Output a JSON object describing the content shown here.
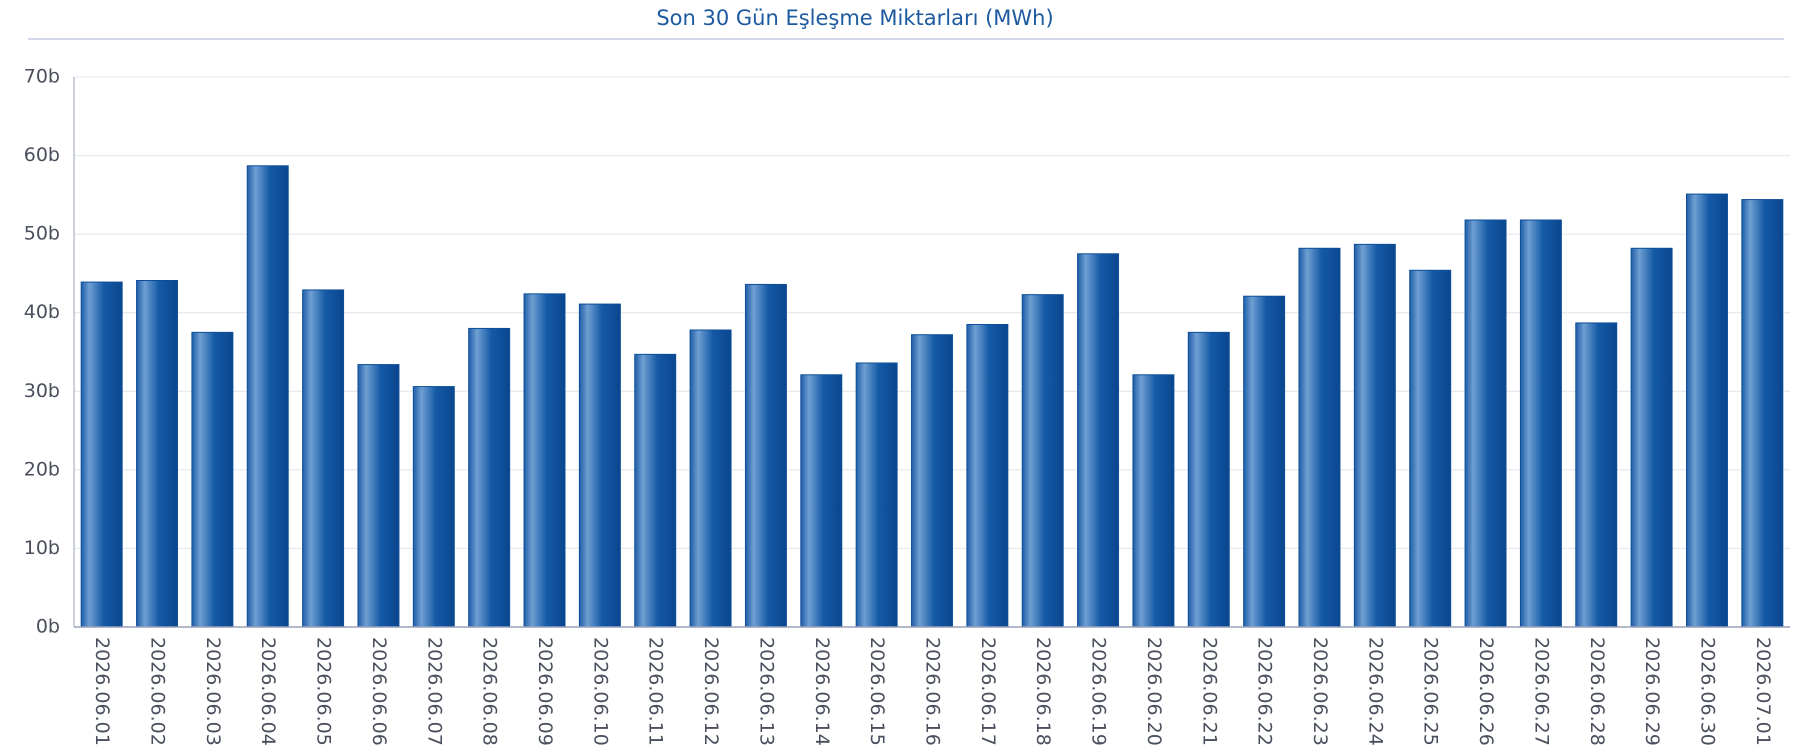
{
  "chart_data": {
    "type": "bar",
    "title": "Son 30 Gün Eşleşme Miktarları (MWh)",
    "categories": [
      "2026.06.01",
      "2026.06.02",
      "2026.06.03",
      "2026.06.04",
      "2026.06.05",
      "2026.06.06",
      "2026.06.07",
      "2026.06.08",
      "2026.06.09",
      "2026.06.10",
      "2026.06.11",
      "2026.06.12",
      "2026.06.13",
      "2026.06.14",
      "2026.06.15",
      "2026.06.16",
      "2026.06.17",
      "2026.06.18",
      "2026.06.19",
      "2026.06.20",
      "2026.06.21",
      "2026.06.22",
      "2026.06.23",
      "2026.06.24",
      "2026.06.25",
      "2026.06.26",
      "2026.06.27",
      "2026.06.28",
      "2026.06.29",
      "2026.06.30",
      "2026.07.01"
    ],
    "values": [
      43.9,
      44.1,
      37.5,
      58.7,
      42.9,
      33.4,
      30.6,
      38.0,
      42.4,
      41.1,
      34.7,
      37.8,
      43.6,
      32.1,
      33.6,
      37.2,
      38.5,
      42.3,
      47.5,
      32.1,
      37.5,
      42.1,
      48.2,
      48.7,
      45.4,
      51.8,
      51.8,
      38.7,
      48.2,
      55.1,
      54.4
    ],
    "color": "#0d4f9a",
    "ylim": [
      0,
      70
    ],
    "yticks": [
      {
        "value": 0,
        "label": "0b"
      },
      {
        "value": 10,
        "label": "10b"
      },
      {
        "value": 20,
        "label": "20b"
      },
      {
        "value": 30,
        "label": "30b"
      },
      {
        "value": 40,
        "label": "40b"
      },
      {
        "value": 50,
        "label": "50b"
      },
      {
        "value": 60,
        "label": "60b"
      },
      {
        "value": 70,
        "label": "70b"
      }
    ],
    "grid": true
  }
}
